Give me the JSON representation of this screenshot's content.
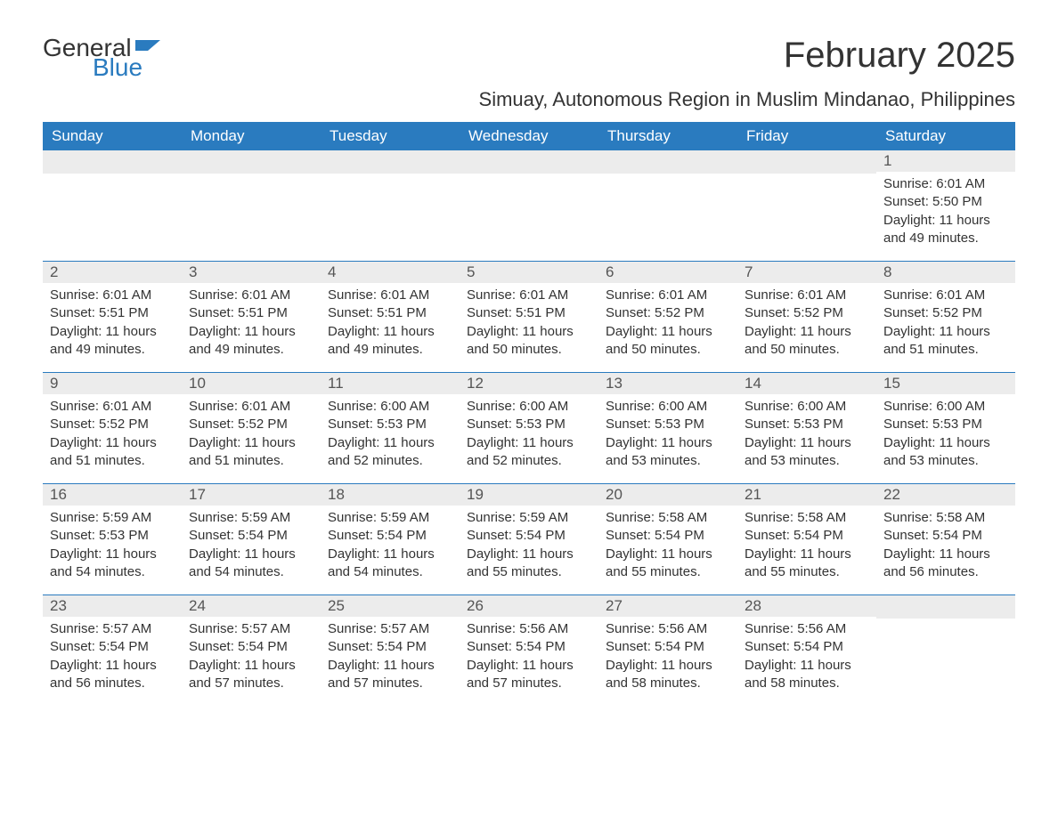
{
  "brand": {
    "word1": "General",
    "word2": "Blue"
  },
  "title": "February 2025",
  "location": "Simuay, Autonomous Region in Muslim Mindanao, Philippines",
  "colors": {
    "header_bg": "#2a7bbf",
    "header_text": "#ffffff",
    "daynum_bg": "#ececec",
    "body_text": "#333333",
    "row_border": "#2a7bbf",
    "background": "#ffffff"
  },
  "typography": {
    "title_fontsize": 40,
    "location_fontsize": 22,
    "th_fontsize": 17,
    "daynum_fontsize": 17,
    "body_fontsize": 15
  },
  "weekdays": [
    "Sunday",
    "Monday",
    "Tuesday",
    "Wednesday",
    "Thursday",
    "Friday",
    "Saturday"
  ],
  "weeks": [
    [
      null,
      null,
      null,
      null,
      null,
      null,
      {
        "n": "1",
        "sunrise": "Sunrise: 6:01 AM",
        "sunset": "Sunset: 5:50 PM",
        "daylight": "Daylight: 11 hours and 49 minutes."
      }
    ],
    [
      {
        "n": "2",
        "sunrise": "Sunrise: 6:01 AM",
        "sunset": "Sunset: 5:51 PM",
        "daylight": "Daylight: 11 hours and 49 minutes."
      },
      {
        "n": "3",
        "sunrise": "Sunrise: 6:01 AM",
        "sunset": "Sunset: 5:51 PM",
        "daylight": "Daylight: 11 hours and 49 minutes."
      },
      {
        "n": "4",
        "sunrise": "Sunrise: 6:01 AM",
        "sunset": "Sunset: 5:51 PM",
        "daylight": "Daylight: 11 hours and 49 minutes."
      },
      {
        "n": "5",
        "sunrise": "Sunrise: 6:01 AM",
        "sunset": "Sunset: 5:51 PM",
        "daylight": "Daylight: 11 hours and 50 minutes."
      },
      {
        "n": "6",
        "sunrise": "Sunrise: 6:01 AM",
        "sunset": "Sunset: 5:52 PM",
        "daylight": "Daylight: 11 hours and 50 minutes."
      },
      {
        "n": "7",
        "sunrise": "Sunrise: 6:01 AM",
        "sunset": "Sunset: 5:52 PM",
        "daylight": "Daylight: 11 hours and 50 minutes."
      },
      {
        "n": "8",
        "sunrise": "Sunrise: 6:01 AM",
        "sunset": "Sunset: 5:52 PM",
        "daylight": "Daylight: 11 hours and 51 minutes."
      }
    ],
    [
      {
        "n": "9",
        "sunrise": "Sunrise: 6:01 AM",
        "sunset": "Sunset: 5:52 PM",
        "daylight": "Daylight: 11 hours and 51 minutes."
      },
      {
        "n": "10",
        "sunrise": "Sunrise: 6:01 AM",
        "sunset": "Sunset: 5:52 PM",
        "daylight": "Daylight: 11 hours and 51 minutes."
      },
      {
        "n": "11",
        "sunrise": "Sunrise: 6:00 AM",
        "sunset": "Sunset: 5:53 PM",
        "daylight": "Daylight: 11 hours and 52 minutes."
      },
      {
        "n": "12",
        "sunrise": "Sunrise: 6:00 AM",
        "sunset": "Sunset: 5:53 PM",
        "daylight": "Daylight: 11 hours and 52 minutes."
      },
      {
        "n": "13",
        "sunrise": "Sunrise: 6:00 AM",
        "sunset": "Sunset: 5:53 PM",
        "daylight": "Daylight: 11 hours and 53 minutes."
      },
      {
        "n": "14",
        "sunrise": "Sunrise: 6:00 AM",
        "sunset": "Sunset: 5:53 PM",
        "daylight": "Daylight: 11 hours and 53 minutes."
      },
      {
        "n": "15",
        "sunrise": "Sunrise: 6:00 AM",
        "sunset": "Sunset: 5:53 PM",
        "daylight": "Daylight: 11 hours and 53 minutes."
      }
    ],
    [
      {
        "n": "16",
        "sunrise": "Sunrise: 5:59 AM",
        "sunset": "Sunset: 5:53 PM",
        "daylight": "Daylight: 11 hours and 54 minutes."
      },
      {
        "n": "17",
        "sunrise": "Sunrise: 5:59 AM",
        "sunset": "Sunset: 5:54 PM",
        "daylight": "Daylight: 11 hours and 54 minutes."
      },
      {
        "n": "18",
        "sunrise": "Sunrise: 5:59 AM",
        "sunset": "Sunset: 5:54 PM",
        "daylight": "Daylight: 11 hours and 54 minutes."
      },
      {
        "n": "19",
        "sunrise": "Sunrise: 5:59 AM",
        "sunset": "Sunset: 5:54 PM",
        "daylight": "Daylight: 11 hours and 55 minutes."
      },
      {
        "n": "20",
        "sunrise": "Sunrise: 5:58 AM",
        "sunset": "Sunset: 5:54 PM",
        "daylight": "Daylight: 11 hours and 55 minutes."
      },
      {
        "n": "21",
        "sunrise": "Sunrise: 5:58 AM",
        "sunset": "Sunset: 5:54 PM",
        "daylight": "Daylight: 11 hours and 55 minutes."
      },
      {
        "n": "22",
        "sunrise": "Sunrise: 5:58 AM",
        "sunset": "Sunset: 5:54 PM",
        "daylight": "Daylight: 11 hours and 56 minutes."
      }
    ],
    [
      {
        "n": "23",
        "sunrise": "Sunrise: 5:57 AM",
        "sunset": "Sunset: 5:54 PM",
        "daylight": "Daylight: 11 hours and 56 minutes."
      },
      {
        "n": "24",
        "sunrise": "Sunrise: 5:57 AM",
        "sunset": "Sunset: 5:54 PM",
        "daylight": "Daylight: 11 hours and 57 minutes."
      },
      {
        "n": "25",
        "sunrise": "Sunrise: 5:57 AM",
        "sunset": "Sunset: 5:54 PM",
        "daylight": "Daylight: 11 hours and 57 minutes."
      },
      {
        "n": "26",
        "sunrise": "Sunrise: 5:56 AM",
        "sunset": "Sunset: 5:54 PM",
        "daylight": "Daylight: 11 hours and 57 minutes."
      },
      {
        "n": "27",
        "sunrise": "Sunrise: 5:56 AM",
        "sunset": "Sunset: 5:54 PM",
        "daylight": "Daylight: 11 hours and 58 minutes."
      },
      {
        "n": "28",
        "sunrise": "Sunrise: 5:56 AM",
        "sunset": "Sunset: 5:54 PM",
        "daylight": "Daylight: 11 hours and 58 minutes."
      },
      null
    ]
  ]
}
